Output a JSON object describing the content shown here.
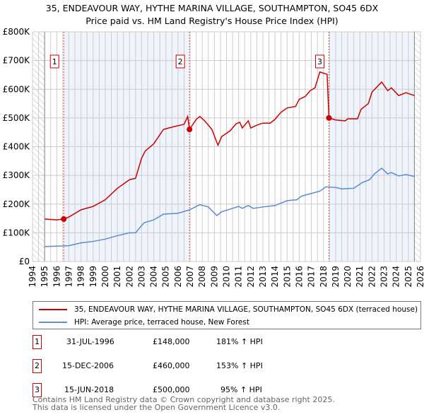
{
  "chart_data": {
    "type": "line",
    "title": "35, ENDEAVOUR WAY, HYTHE MARINA VILLAGE, SOUTHAMPTON, SO45 6DX",
    "subtitle": "Price paid vs. HM Land Registry's House Price Index (HPI)",
    "xlim": [
      1994,
      2026
    ],
    "ylim": [
      0,
      800000
    ],
    "xticks": [
      "1994",
      "1995",
      "1996",
      "1997",
      "1998",
      "1999",
      "2000",
      "2001",
      "2002",
      "2003",
      "2004",
      "2005",
      "2006",
      "2007",
      "2008",
      "2009",
      "2010",
      "2011",
      "2012",
      "2013",
      "2014",
      "2015",
      "2016",
      "2017",
      "2018",
      "2019",
      "2020",
      "2021",
      "2022",
      "2023",
      "2024",
      "2025",
      "2026"
    ],
    "yticks": [
      {
        "v": 0,
        "l": "£0"
      },
      {
        "v": 100000,
        "l": "£100K"
      },
      {
        "v": 200000,
        "l": "£200K"
      },
      {
        "v": 300000,
        "l": "£300K"
      },
      {
        "v": 400000,
        "l": "£400K"
      },
      {
        "v": 500000,
        "l": "£500K"
      },
      {
        "v": 600000,
        "l": "£600K"
      },
      {
        "v": 700000,
        "l": "£700K"
      },
      {
        "v": 800000,
        "l": "£800K"
      }
    ],
    "series": [
      {
        "name": "35, ENDEAVOUR WAY, HYTHE MARINA VILLAGE, SOUTHAMPTON, SO45 6DX (terraced house)",
        "color": "#cc0000",
        "x": [
          1995,
          1996,
          1996.58,
          1997,
          1998,
          1999,
          2000,
          2001,
          2002,
          2002.5,
          2003,
          2003.3,
          2004,
          2004.8,
          2005.5,
          2006.5,
          2006.8,
          2006.95,
          2007.5,
          2007.8,
          2008.2,
          2008.8,
          2009.2,
          2009.3,
          2009.6,
          2010.3,
          2010.8,
          2011.1,
          2011.3,
          2011.8,
          2012,
          2012.5,
          2013,
          2013.6,
          2014,
          2014.5,
          2015,
          2015.7,
          2016,
          2016.5,
          2016.9,
          2017.3,
          2017.7,
          2018.3,
          2018.45,
          2019,
          2019.8,
          2020,
          2020.8,
          2021.1,
          2021.7,
          2022,
          2022.8,
          2023.3,
          2023.6,
          2024.2,
          2024.8,
          2025.5
        ],
        "y": [
          148000,
          145000,
          148000,
          155000,
          180000,
          192000,
          215000,
          255000,
          285000,
          290000,
          360000,
          385000,
          410000,
          460000,
          468000,
          478000,
          505000,
          460000,
          495000,
          505000,
          490000,
          460000,
          415000,
          405000,
          435000,
          455000,
          480000,
          485000,
          465000,
          490000,
          465000,
          475000,
          482000,
          482000,
          495000,
          520000,
          535000,
          540000,
          565000,
          575000,
          595000,
          605000,
          660000,
          652000,
          500000,
          493000,
          490000,
          497000,
          497000,
          530000,
          550000,
          590000,
          625000,
          595000,
          605000,
          578000,
          588000,
          578000
        ]
      },
      {
        "name": "HPI: Average price, terraced house, New Forest",
        "color": "#5b8bd0",
        "x": [
          1995,
          1997,
          1998,
          1999,
          2000,
          2001,
          2002,
          2002.5,
          2003.2,
          2004,
          2004.8,
          2006,
          2006.95,
          2007.8,
          2008.5,
          2009.2,
          2009.6,
          2010.5,
          2011,
          2011.3,
          2011.8,
          2012.2,
          2013,
          2014,
          2015,
          2015.8,
          2016.2,
          2017,
          2017.7,
          2018.2,
          2019,
          2019.5,
          2020.5,
          2021.2,
          2021.8,
          2022.2,
          2022.8,
          2023.3,
          2023.6,
          2024.2,
          2024.8,
          2025.5
        ],
        "y": [
          52000,
          55000,
          65000,
          70000,
          78000,
          90000,
          100000,
          100000,
          135000,
          145000,
          165000,
          168000,
          180000,
          198000,
          190000,
          160000,
          173000,
          185000,
          192000,
          185000,
          195000,
          185000,
          190000,
          195000,
          212000,
          215000,
          228000,
          237000,
          245000,
          260000,
          258000,
          253000,
          255000,
          275000,
          285000,
          305000,
          325000,
          305000,
          310000,
          298000,
          303000,
          296000
        ]
      }
    ],
    "sales": [
      {
        "n": "1",
        "x": 1996.58,
        "y": 148000,
        "date": "31-JUL-1996",
        "price": "£148,000",
        "hpi": "181% ↑ HPI"
      },
      {
        "n": "2",
        "x": 2006.95,
        "y": 460000,
        "date": "15-DEC-2006",
        "price": "£460,000",
        "hpi": "153% ↑ HPI"
      },
      {
        "n": "3",
        "x": 2018.45,
        "y": 500000,
        "date": "15-JUN-2018",
        "price": "£500,000",
        "hpi": "95% ↑ HPI"
      }
    ],
    "legend_position": "below"
  },
  "footer": {
    "line1": "Contains HM Land Registry data © Crown copyright and database right 2025.",
    "line2": "This data is licensed under the Open Government Licence v3.0."
  }
}
